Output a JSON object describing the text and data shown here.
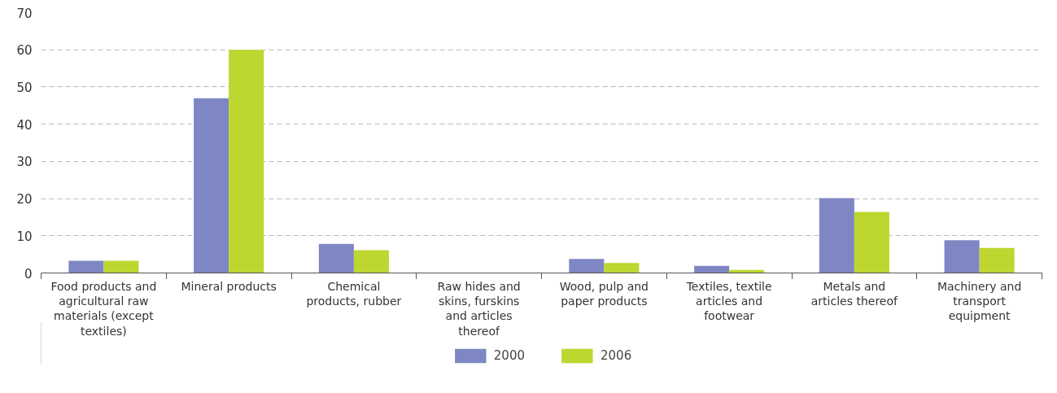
{
  "chart_data": {
    "type": "bar",
    "categories": [
      "Food products and agricultural raw materials (except textiles)",
      "Mineral products",
      "Chemical products, rubber",
      "Raw hides and skins, furskins and articles thereof",
      "Wood, pulp and paper products",
      "Textiles, textile articles and footwear",
      "Metals and articles thereof",
      "Machinery and transport equipment"
    ],
    "series": [
      {
        "name": "2000",
        "color": "#7f86c4",
        "values": [
          3.3,
          47,
          7.8,
          0,
          3.8,
          1.9,
          20.1,
          8.8
        ]
      },
      {
        "name": "2006",
        "color": "#bdd630",
        "values": [
          3.3,
          60,
          6.1,
          0,
          2.7,
          0.8,
          16.4,
          6.7
        ]
      }
    ],
    "ylim": [
      0,
      70
    ],
    "yticks": [
      0,
      10,
      20,
      30,
      40,
      50,
      60,
      70
    ],
    "grid": "y",
    "legend": "bottom"
  }
}
